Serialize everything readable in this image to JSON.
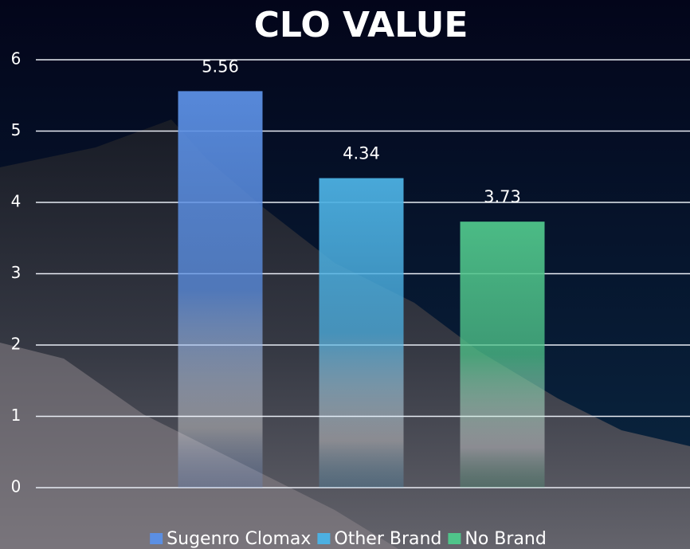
{
  "chart_data": {
    "type": "bar",
    "title": "CLO VALUE",
    "categories": [
      null
    ],
    "series": [
      {
        "name": "Sugenro Clomax",
        "color": "#5b8fe3",
        "values": [
          5.56
        ]
      },
      {
        "name": "Other Brand",
        "color": "#4cb0e2",
        "values": [
          4.34
        ]
      },
      {
        "name": "No Brand",
        "color": "#4fc48a",
        "values": [
          3.73
        ]
      }
    ],
    "ylim": [
      0,
      6
    ],
    "yticks": [
      0,
      1,
      2,
      3,
      4,
      5,
      6
    ],
    "grid": true,
    "legend": "bottom"
  }
}
